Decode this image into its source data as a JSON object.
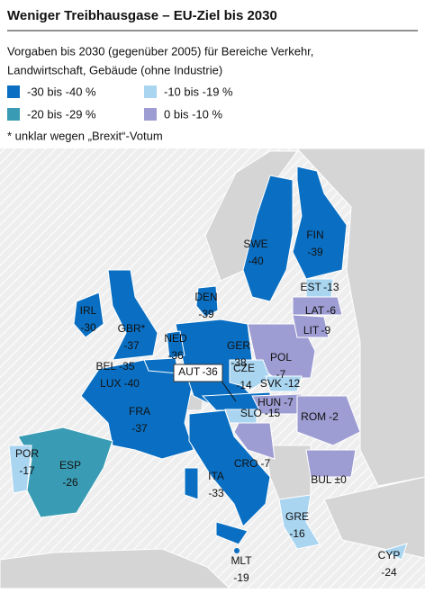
{
  "header": {
    "title": "Weniger Treibhausgase – EU-Ziel bis 2030",
    "subtitle": [
      "Vorgaben bis 2030 (gegenüber 2005) für Bereiche Verkehr,",
      "Landwirtschaft, Gebäude (ohne Industrie)"
    ],
    "note": "* unklar wegen „Brexit“-Votum"
  },
  "legend": [
    {
      "label": "-30 bis -40 %",
      "color": "#0a6fc2"
    },
    {
      "label": "-10 bis -19 %",
      "color": "#a9d5f0"
    },
    {
      "label": "-20 bis -29 %",
      "color": "#3a9cb4"
    },
    {
      "label": "0 bis -10 %",
      "color": "#9d9dd3"
    }
  ],
  "countries": [
    {
      "code": "FIN",
      "value": "-39"
    },
    {
      "code": "SWE",
      "value": "-40"
    },
    {
      "code": "EST",
      "value": "-13"
    },
    {
      "code": "LAT",
      "value": "-6"
    },
    {
      "code": "LIT",
      "value": "-9"
    },
    {
      "code": "DEN",
      "value": "-39"
    },
    {
      "code": "IRL",
      "value": "-30"
    },
    {
      "code": "GBR*",
      "value": "-37"
    },
    {
      "code": "NED",
      "value": "-36"
    },
    {
      "code": "BEL",
      "value": "-35"
    },
    {
      "code": "LUX",
      "value": "-40"
    },
    {
      "code": "GER",
      "value": "-38"
    },
    {
      "code": "POL",
      "value": "-7"
    },
    {
      "code": "AUT",
      "value": "-36"
    },
    {
      "code": "CZE",
      "value": "-14"
    },
    {
      "code": "SVK",
      "value": "-12"
    },
    {
      "code": "HUN",
      "value": "-7"
    },
    {
      "code": "SLO",
      "value": "-15"
    },
    {
      "code": "FRA",
      "value": "-37"
    },
    {
      "code": "ROM",
      "value": "-2"
    },
    {
      "code": "POR",
      "value": "-17"
    },
    {
      "code": "ESP",
      "value": "-26"
    },
    {
      "code": "CRO",
      "value": "-7"
    },
    {
      "code": "BUL",
      "value": "±0"
    },
    {
      "code": "ITA",
      "value": "-33"
    },
    {
      "code": "GRE",
      "value": "-16"
    },
    {
      "code": "MLT",
      "value": "-19"
    },
    {
      "code": "CYP",
      "value": "-24"
    }
  ]
}
